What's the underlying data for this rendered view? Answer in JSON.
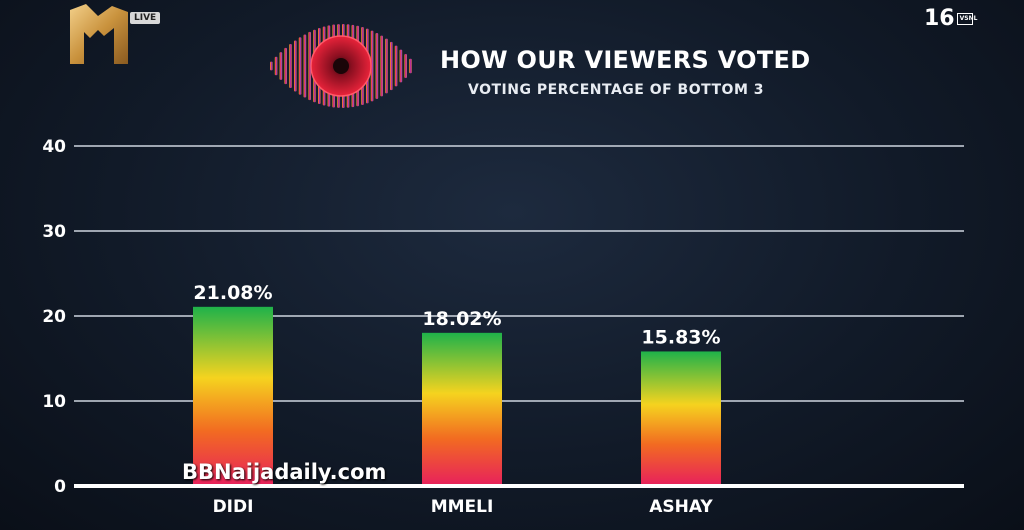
{
  "header": {
    "title": "HOW OUR VIEWERS VOTED",
    "subtitle": "VOTING PERCENTAGE OF BOTTOM 3",
    "live_badge": "LIVE",
    "rating": "16",
    "rating_box": "VSNL"
  },
  "watermark": "BBNaijadaily.com",
  "chart_data": {
    "type": "bar",
    "categories": [
      "DIDI",
      "MMELI",
      "ASHAY"
    ],
    "values": [
      21.08,
      18.02,
      15.83
    ],
    "value_labels": [
      "21.08%",
      "18.02%",
      "15.83%"
    ],
    "ylim": [
      0,
      40
    ],
    "yticks": [
      "0",
      "10",
      "20",
      "30",
      "40"
    ],
    "grid": true,
    "colors": {
      "bar_top": "#1fb24a",
      "bar_mid": "#f5d31f",
      "bar_low": "#f26b21",
      "bar_bottom": "#e8235a",
      "grid": "#cfd6e0",
      "axis": "#ffffff"
    }
  }
}
